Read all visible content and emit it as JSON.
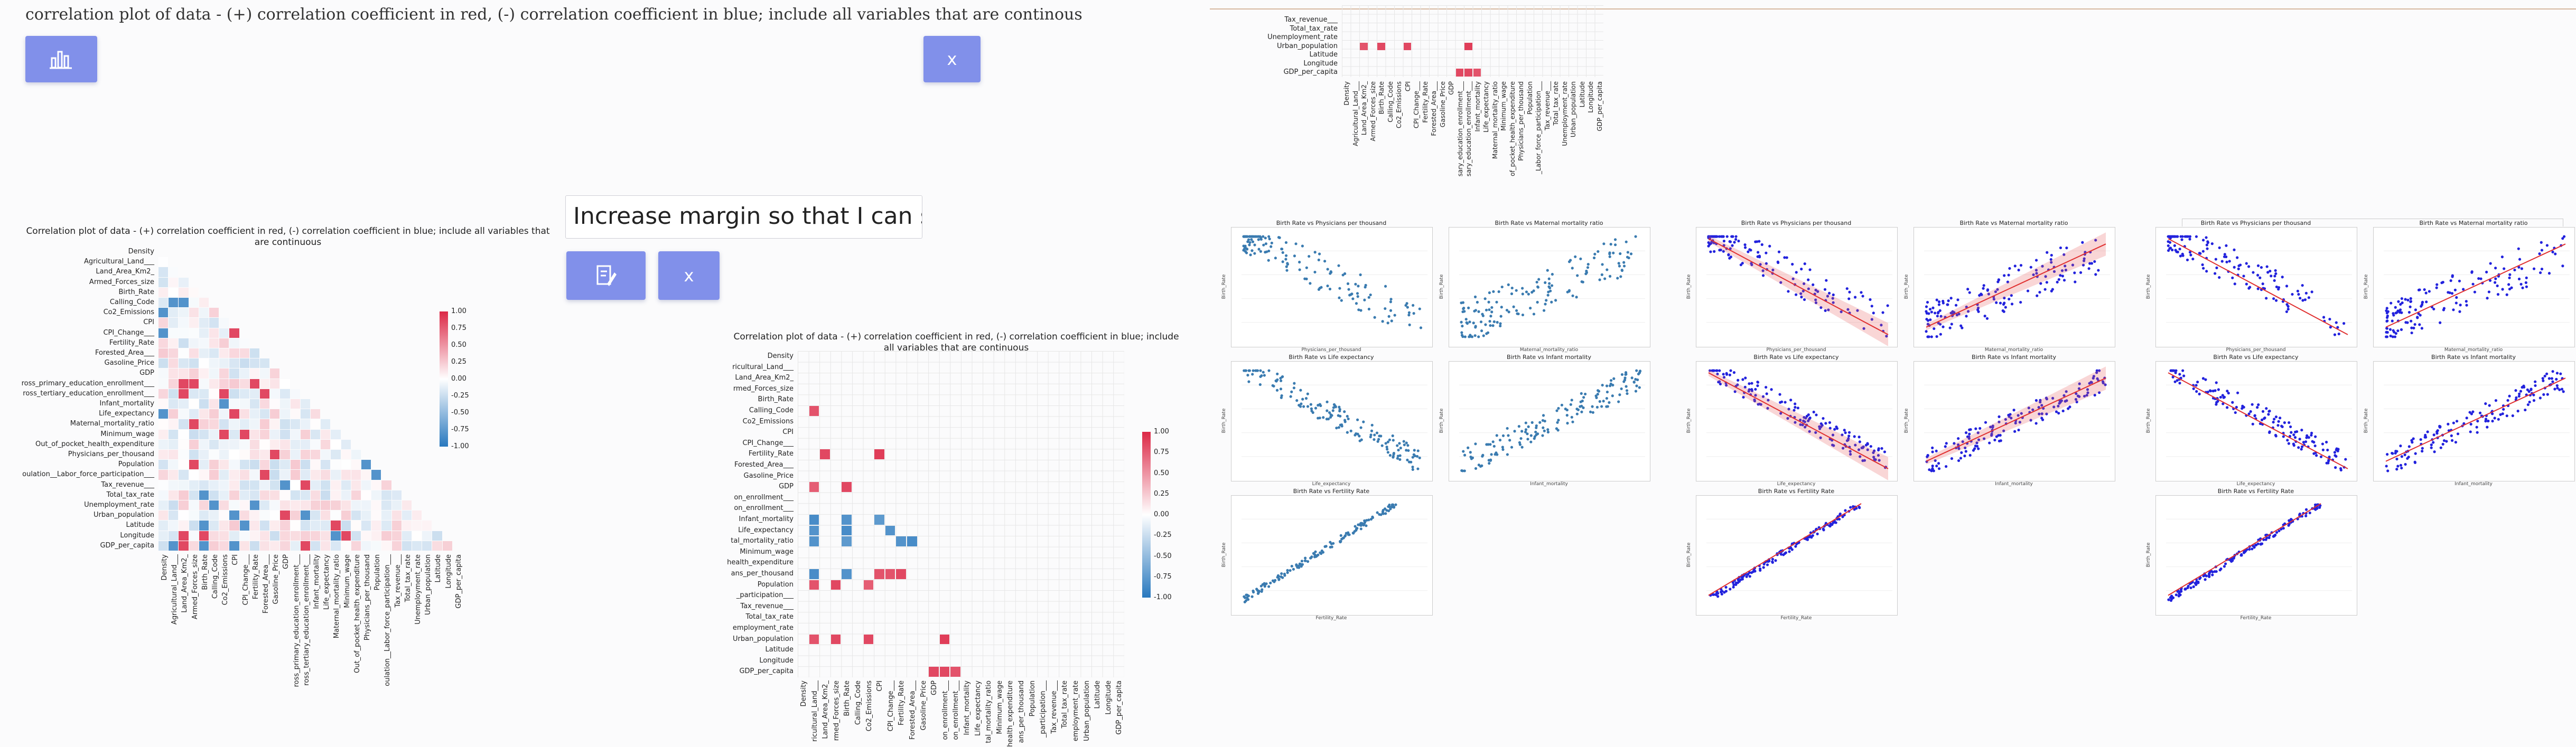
{
  "prompt_text": "correlation plot of data - (+) correlation coefficient in red, (-) correlation coefficient in blue; include all variables that are continous",
  "chat": {
    "chart_button_icon": "bar-chart-icon",
    "close_button_label": "x",
    "input_value": "Increase margin so that I can see al",
    "edit_button_icon": "edit-icon",
    "close_button_2_label": "x"
  },
  "heatmap1": {
    "title": "Correlation plot of data - (+) correlation coefficient in red, (-) correlation coefficient in blue; include all variables that are continuous",
    "variables": [
      "Density",
      "Agricultural_Land___",
      "Land_Area_Km2_",
      "Armed_Forces_size",
      "Birth_Rate",
      "Calling_Code",
      "Co2_Emissions",
      "CPI",
      "CPI_Change___",
      "Fertility_Rate",
      "Forested_Area___",
      "Gasoline_Price",
      "GDP",
      "ross_primary_education_enrollment___",
      "ross_tertiary_education_enrollment___",
      "Infant_mortality",
      "Life_expectancy",
      "Maternal_mortality_ratio",
      "Minimum_wage",
      "Out_of_pocket_health_expenditure",
      "Physicians_per_thousand",
      "Population",
      "oulation__Labor_force_participation___",
      "Tax_revenue___",
      "Total_tax_rate",
      "Unemployment_rate",
      "Urban_population",
      "Latitude",
      "Longitude",
      "GDP_per_capita"
    ],
    "colorbar_ticks": [
      "1.00",
      "0.75",
      "0.50",
      "0.25",
      "0.00",
      "-0.25",
      "-0.50",
      "-0.75",
      "-1.00"
    ]
  },
  "heatmap2": {
    "title": "Correlation plot of data - (+) correlation coefficient in red, (-) correlation coefficient in blue; include all variables that are continuous",
    "variables": [
      "Density",
      "ricultural_Land___",
      "Land_Area_Km2_",
      "rmed_Forces_size",
      "Birth_Rate",
      "Calling_Code",
      "Co2_Emissions",
      "CPI",
      "CPI_Change___",
      "Fertility_Rate",
      "Forested_Area___",
      "Gasoline_Price",
      "GDP",
      "on_enrollment___",
      "on_enrollment___",
      "Infant_mortality",
      "Life_expectancy",
      "tal_mortality_ratio",
      "Minimum_wage",
      "health_expenditure",
      "ans_per_thousand",
      "Population",
      "_participation___",
      "Tax_revenue___",
      "Total_tax_rate",
      "employment_rate",
      "Urban_population",
      "Latitude",
      "Longitude",
      "GDP_per_capita"
    ],
    "colorbar_ticks": [
      "1.00",
      "0.75",
      "0.50",
      "0.25",
      "0.00",
      "-0.25",
      "-0.50",
      "-0.75",
      "-1.00"
    ]
  },
  "heatmap3": {
    "variables_rows": [
      "Tax_revenue___",
      "Total_tax_rate",
      "Unemployment_rate",
      "Urban_population",
      "Latitude",
      "Longitude",
      "GDP_per_capita"
    ],
    "variables_cols": [
      "Density",
      "Agricultural_Land___",
      "Land_Area_Km2_",
      "Armed_Forces_size",
      "Birth_Rate",
      "Calling_Code",
      "Co2_Emissions",
      "CPI",
      "CPI_Change___",
      "Fertility_Rate",
      "Forested_Area___",
      "Gasoline_Price",
      "GDP",
      "sary_education_enrollment___",
      "sary_education_enrollment___",
      "Infant_mortality",
      "Life_expectancy",
      "Maternal_mortality_ratio",
      "Minimum_wage",
      "of_pocket_health_expenditure",
      "Physicians_per_thousand",
      "Population",
      "_Labor_force_participation___",
      "Tax_revenue___",
      "Total_tax_rate",
      "Unemployment_rate",
      "Urban_population",
      "Latitude",
      "Longitude",
      "GDP_per_capita"
    ]
  },
  "scatter_sets": {
    "titles": [
      "Birth Rate vs Physicians per thousand",
      "Birth Rate vs Maternal mortality ratio",
      "Birth Rate vs Life expectancy",
      "Birth Rate vs Infant mortality",
      "Birth Rate vs Fertility Rate"
    ],
    "xlabels": [
      "Physicians_per_thousand",
      "Maternal_mortality_ratio",
      "Life_expectancy",
      "Infant_mortality",
      "Fertility_Rate"
    ],
    "ylabel": "Birth_Rate"
  }
}
